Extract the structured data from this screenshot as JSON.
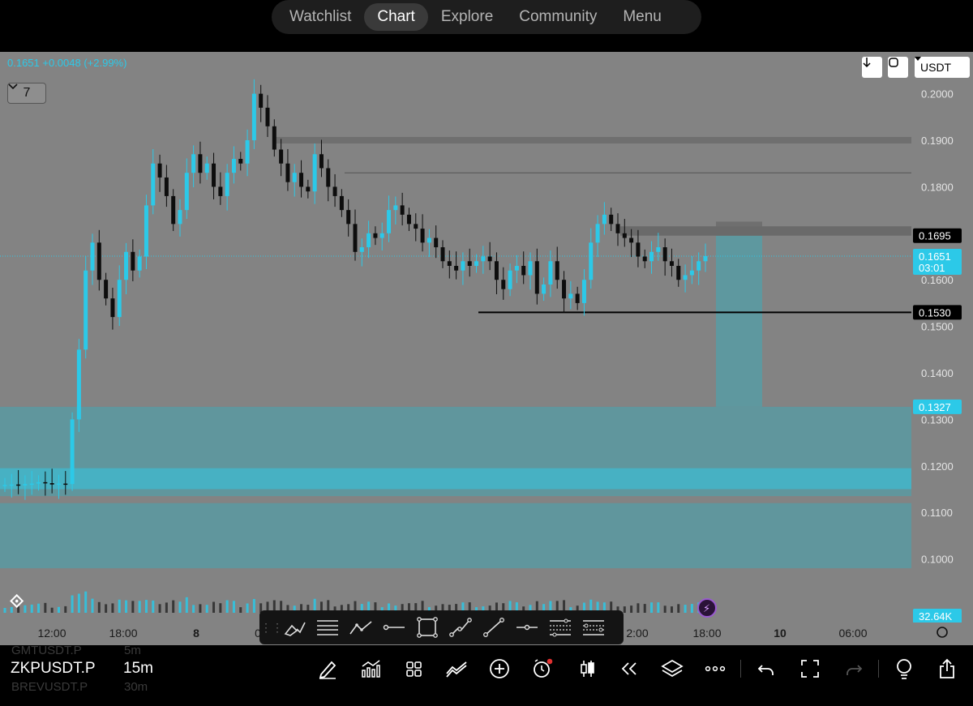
{
  "nav": {
    "tabs": [
      {
        "label": "Watchlist"
      },
      {
        "label": "Chart",
        "active": true
      },
      {
        "label": "Explore"
      },
      {
        "label": "Community"
      },
      {
        "label": "Menu"
      }
    ]
  },
  "header": {
    "quote": "0.1651 +0.0048 (+2.99%)",
    "collapse_count": "7"
  },
  "controls": {
    "currency": "USDT",
    "download_icon": "arrow-down-icon",
    "refresh_icon": "refresh-icon"
  },
  "price_axis": {
    "ticks": [
      "0.2000",
      "0.1900",
      "0.1800",
      "0.1700",
      "0.1600",
      "0.1500",
      "0.1400",
      "0.1300",
      "0.1200",
      "0.1100",
      "0.1000"
    ],
    "labels": {
      "resistance": "0.1695",
      "current_price": "0.1651",
      "countdown": "03:01",
      "support": "0.1530",
      "target": "0.1327",
      "volume": "32.64K"
    }
  },
  "time_axis": {
    "ticks": [
      "12:00",
      "18:00",
      "8",
      "0",
      "2:00",
      "18:00",
      "10",
      "06:00"
    ]
  },
  "chart_data": {
    "type": "candlestick",
    "symbol": "ZKPUSDT.P",
    "interval": "15m",
    "ylim": [
      0.094,
      0.209
    ],
    "last_price": 0.1651,
    "horizontal_levels": [
      0.19,
      0.183,
      0.1695,
      0.153,
      0.1327
    ],
    "zones": [
      {
        "from": 0.1327,
        "to": 0.098
      },
      {
        "from": 0.1695,
        "to": 0.1327
      }
    ],
    "closes": [
      0.1159,
      0.116,
      0.1158,
      0.1161,
      0.1162,
      0.1165,
      0.1163,
      0.116,
      0.1162,
      0.1161,
      0.13,
      0.145,
      0.162,
      0.168,
      0.16,
      0.156,
      0.152,
      0.16,
      0.166,
      0.162,
      0.165,
      0.176,
      0.185,
      0.182,
      0.178,
      0.172,
      0.175,
      0.183,
      0.187,
      0.183,
      0.185,
      0.18,
      0.178,
      0.183,
      0.186,
      0.185,
      0.19,
      0.2,
      0.197,
      0.193,
      0.188,
      0.185,
      0.181,
      0.183,
      0.18,
      0.179,
      0.187,
      0.184,
      0.18,
      0.178,
      0.175,
      0.172,
      0.166,
      0.167,
      0.17,
      0.169,
      0.17,
      0.175,
      0.176,
      0.174,
      0.172,
      0.171,
      0.168,
      0.169,
      0.167,
      0.164,
      0.163,
      0.162,
      0.164,
      0.163,
      0.164,
      0.165,
      0.164,
      0.16,
      0.158,
      0.162,
      0.163,
      0.161,
      0.164,
      0.157,
      0.159,
      0.164,
      0.16,
      0.156,
      0.157,
      0.155,
      0.16,
      0.168,
      0.172,
      0.174,
      0.172,
      0.17,
      0.169,
      0.168,
      0.165,
      0.164,
      0.166,
      0.167,
      0.164,
      0.163,
      0.16,
      0.161,
      0.162,
      0.164,
      0.1651
    ]
  },
  "toolbar": {
    "tools": [
      "brush-icon",
      "parallel-lines-icon",
      "polyline-icon",
      "horizontal-ray-icon",
      "rectangle-icon",
      "path-icon",
      "trend-line-icon",
      "horizontal-line-icon",
      "fib-retracement-icon",
      "fib-extension-icon"
    ]
  },
  "bottom": {
    "symbol_prev": "GMTUSDT.P",
    "timeframe_prev": "5m",
    "symbol": "ZKPUSDT.P",
    "timeframe": "15m",
    "symbol_next": "BREVUSDT.P",
    "timeframe_next": "30m"
  }
}
